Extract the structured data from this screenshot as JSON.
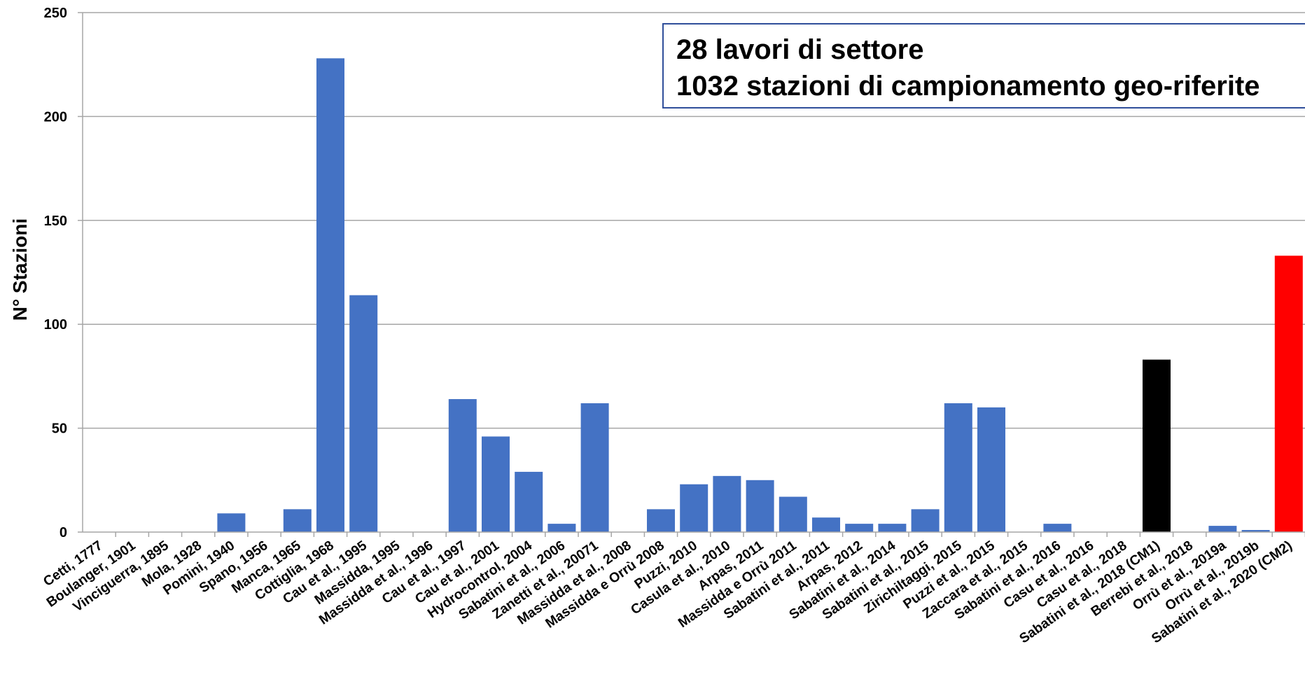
{
  "chart_data": {
    "type": "bar",
    "ylabel": "N° Stazioni",
    "xlabel": "",
    "ylim": [
      0,
      250
    ],
    "yticks": [
      0,
      50,
      100,
      150,
      200,
      250
    ],
    "grid": "horizontal",
    "categories": [
      "Cetti, 1777",
      "Boulanger, 1901",
      "Vinciguerra, 1895",
      "Mola, 1928",
      "Pomini, 1940",
      "Spano, 1956",
      "Manca, 1965",
      "Cottiglia, 1968",
      "Cau et al., 1995",
      "Massidda, 1995",
      "Massidda et al., 1996",
      "Cau et al., 1997",
      "Cau et al., 2001",
      "Hydrocontrol, 2004",
      "Sabatini et al., 2006",
      "Zanetti et al., 20071",
      "Massidda et al., 2008",
      "Massidda e Orrù 2008",
      "Puzzi, 2010",
      "Casula et al., 2010",
      "Arpas, 2011",
      "Massidda e Orrù 2011",
      "Sabatini et al., 2011",
      "Arpas, 2012",
      "Sabatini et al., 2014",
      "Sabatini et al., 2015",
      "Zirichiltaggi, 2015",
      "Puzzi et al., 2015",
      "Zaccara et al., 2015",
      "Sabatini et al., 2016",
      "Casu et al., 2016",
      "Casu et al., 2018",
      "Sabatini et al., 2018 (CM1)",
      "Berrebi et al., 2018",
      "Orrù et al., 2019a",
      "Orrù et al., 2019b",
      "Sabatini et al., 2020 (CM2)"
    ],
    "values": [
      0,
      0,
      0,
      0,
      9,
      0,
      11,
      228,
      114,
      0,
      0,
      64,
      46,
      29,
      4,
      62,
      0,
      11,
      23,
      27,
      25,
      17,
      7,
      4,
      4,
      11,
      62,
      60,
      0,
      4,
      0,
      0,
      83,
      0,
      3,
      1,
      133
    ],
    "bar_colors": {
      "default": "#4472c4",
      "Sabatini et al., 2018 (CM1)": "#000000",
      "Sabatini et al., 2020 (CM2)": "#ff0000"
    },
    "annotation": {
      "line1": "28 lavori di settore",
      "line2": "1032 stazioni di campionamento geo-riferite"
    }
  }
}
